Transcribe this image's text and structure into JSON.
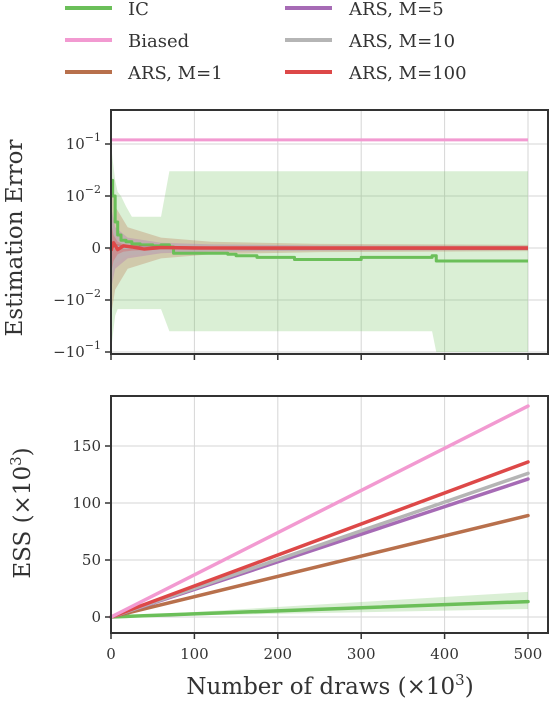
{
  "legend": [
    {
      "label": "IC",
      "color": "#6bbf59"
    },
    {
      "label": "Biased",
      "color": "#f29ad1"
    },
    {
      "label": "ARS, M=1",
      "color": "#b8704c"
    },
    {
      "label": "ARS, M=5",
      "color": "#a66bb5"
    },
    {
      "label": "ARS, M=10",
      "color": "#b5b5b5"
    },
    {
      "label": "ARS, M=100",
      "color": "#dd4848"
    }
  ],
  "chart_data": [
    {
      "type": "line",
      "yscale": "symlog",
      "ylabel": "Estimation Error",
      "xlim": [
        0,
        510
      ],
      "ylim": [
        -0.1,
        0.2
      ],
      "y_ticks": [
        {
          "label": "10",
          "exp": "−1",
          "value": 0.1
        },
        {
          "label": "10",
          "exp": "−2",
          "value": 0.01
        },
        {
          "label": "0",
          "exp": "",
          "value": 0
        },
        {
          "label": "−10",
          "exp": "−2",
          "value": -0.01
        },
        {
          "label": "−10",
          "exp": "−1",
          "value": -0.1
        }
      ],
      "grid": true,
      "series": [
        {
          "name": "Biased",
          "color": "#f29ad1",
          "x": [
            0,
            500
          ],
          "y": [
            0.12,
            0.12
          ]
        },
        {
          "name": "IC",
          "color": "#6bbf59",
          "x": [
            0,
            2,
            5,
            8,
            12,
            18,
            25,
            35,
            50,
            60,
            70,
            75,
            100,
            140,
            150,
            175,
            220,
            300,
            385,
            390,
            500
          ],
          "y": [
            0.02,
            0.01,
            0.005,
            0.0025,
            0.0015,
            0.0012,
            0.0008,
            0.0006,
            0.0004,
            0.0006,
            0.0002,
            -0.001,
            -0.001,
            -0.0012,
            -0.0015,
            -0.0018,
            -0.0022,
            -0.0018,
            -0.0015,
            -0.0025,
            -0.0025
          ],
          "band_upper": [
            0.1,
            0.05,
            0.02,
            0.012,
            0.01,
            0.008,
            0.006,
            0.006,
            0.006,
            0.006,
            0.03,
            0.03,
            0.03,
            0.03,
            0.03,
            0.03,
            0.03,
            0.03,
            0.03,
            0.03,
            0.03
          ],
          "band_lower": [
            -0.1,
            -0.05,
            -0.02,
            -0.015,
            -0.015,
            -0.015,
            -0.015,
            -0.015,
            -0.015,
            -0.015,
            -0.04,
            -0.04,
            -0.04,
            -0.04,
            -0.04,
            -0.04,
            -0.04,
            -0.04,
            -0.04,
            -0.1,
            -0.1
          ]
        },
        {
          "name": "ARS, M=1",
          "color": "#b8704c",
          "x": [
            0,
            5,
            20,
            60,
            120,
            250,
            500
          ],
          "y": [
            0.0002,
            0.0004,
            0.0002,
            0.0001,
            0.0,
            -0.0001,
            -0.0001
          ],
          "band_upper": [
            0.02,
            0.008,
            0.004,
            0.002,
            0.0012,
            0.0008,
            0.0006
          ],
          "band_lower": [
            -0.02,
            -0.008,
            -0.004,
            -0.002,
            -0.0012,
            -0.0008,
            -0.0006
          ]
        },
        {
          "name": "ARS, M=5",
          "color": "#a66bb5",
          "x": [
            0,
            5,
            20,
            60,
            120,
            250,
            500
          ],
          "y": [
            0.0002,
            0.0003,
            0.0001,
            0.0,
            0.0,
            -5e-05,
            -5e-05
          ],
          "band_upper": [
            0.008,
            0.004,
            0.002,
            0.001,
            0.0007,
            0.0005,
            0.0004
          ],
          "band_lower": [
            -0.008,
            -0.004,
            -0.002,
            -0.001,
            -0.0007,
            -0.0005,
            -0.0004
          ]
        },
        {
          "name": "ARS, M=10",
          "color": "#b5b5b5",
          "x": [
            0,
            5,
            20,
            60,
            120,
            250,
            500
          ],
          "y": [
            0.0001,
            0.0002,
            0.0001,
            0.0,
            0.0,
            0.0,
            0.0
          ],
          "band_upper": [
            0.006,
            0.003,
            0.0015,
            0.0008,
            0.0006,
            0.0004,
            0.0003
          ],
          "band_lower": [
            -0.006,
            -0.003,
            -0.0015,
            -0.0008,
            -0.0006,
            -0.0004,
            -0.0003
          ]
        },
        {
          "name": "ARS, M=100",
          "color": "#dd4848",
          "x": [
            0,
            3,
            8,
            15,
            25,
            40,
            60,
            100,
            200,
            500
          ],
          "y": [
            -0.0005,
            0.001,
            -0.0003,
            0.0004,
            0.0002,
            -0.0002,
            0.0001,
            0.0,
            0.0,
            0.0
          ],
          "band_upper": [
            0.005,
            0.0025,
            0.0012,
            0.0007,
            0.0005,
            0.0004,
            0.0003,
            0.0003,
            0.0002,
            0.0002
          ],
          "band_lower": [
            -0.005,
            -0.0025,
            -0.0012,
            -0.0007,
            -0.0005,
            -0.0004,
            -0.0003,
            -0.0003,
            -0.0002,
            -0.0002
          ]
        }
      ]
    },
    {
      "type": "line",
      "xlabel": "Number of draws (×10",
      "xlabel_exp": "3",
      "xlabel_close": ")",
      "ylabel": "ESS (×10",
      "ylabel_exp": "3",
      "ylabel_close": ")",
      "xlim": [
        -3,
        510
      ],
      "ylim": [
        -8,
        193
      ],
      "x_ticks": [
        0,
        100,
        200,
        300,
        400,
        500
      ],
      "y_ticks": [
        0,
        50,
        100,
        150
      ],
      "grid": true,
      "series": [
        {
          "name": "IC",
          "color": "#6bbf59",
          "x": [
            0,
            500
          ],
          "y": [
            0,
            13.5
          ],
          "band_upper": [
            0,
            22
          ],
          "band_lower": [
            0,
            7
          ]
        },
        {
          "name": "Biased",
          "color": "#f29ad1",
          "x": [
            0,
            500
          ],
          "y": [
            0,
            185
          ]
        },
        {
          "name": "ARS, M=1",
          "color": "#b8704c",
          "x": [
            0,
            500
          ],
          "y": [
            0,
            89
          ]
        },
        {
          "name": "ARS, M=5",
          "color": "#a66bb5",
          "x": [
            0,
            500
          ],
          "y": [
            0,
            121
          ]
        },
        {
          "name": "ARS, M=10",
          "color": "#b5b5b5",
          "x": [
            0,
            500
          ],
          "y": [
            0,
            126
          ]
        },
        {
          "name": "ARS, M=100",
          "color": "#dd4848",
          "x": [
            0,
            500
          ],
          "y": [
            0,
            136
          ]
        }
      ]
    }
  ]
}
